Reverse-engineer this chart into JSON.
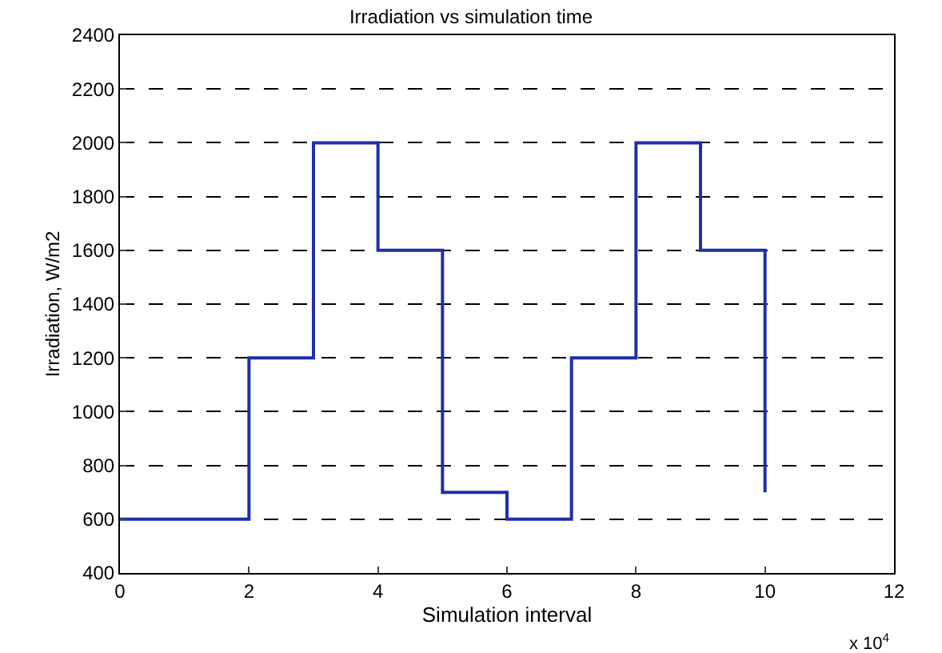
{
  "chart_data": {
    "type": "step",
    "title": "Irradiation vs simulation time",
    "xlabel": "Simulation interval",
    "ylabel": "Irradiation, W/m2",
    "x": [
      0,
      2,
      3,
      4,
      5,
      6,
      7,
      8,
      9,
      10
    ],
    "series": [
      {
        "color": "#1f2fa8",
        "values": [
          600,
          1200,
          2000,
          1600,
          700,
          600,
          1200,
          2000,
          1600,
          700
        ]
      }
    ],
    "xlim": [
      0,
      12
    ],
    "xticks": [
      0,
      2,
      4,
      6,
      8,
      10,
      12
    ],
    "ylim": [
      400,
      2400
    ],
    "yticks": [
      400,
      600,
      800,
      1000,
      1200,
      1400,
      1600,
      1800,
      2000,
      2200,
      2400
    ],
    "grid": "y",
    "line_style": "solid",
    "legend": false,
    "annotations": [
      "x 10$^{4}$"
    ]
  }
}
